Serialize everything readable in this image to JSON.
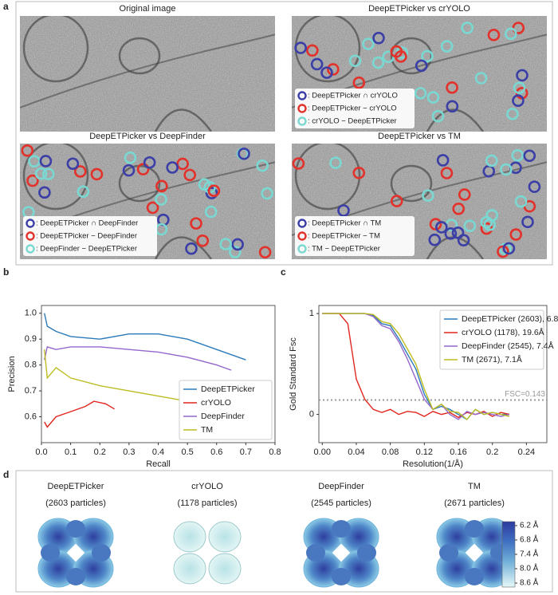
{
  "panel_labels": [
    "a",
    "b",
    "c",
    "d"
  ],
  "panel_a": {
    "marker_colors": [
      "#3b3fa6",
      "#e2322b",
      "#79d8d2"
    ],
    "images": [
      {
        "title": "Original image"
      },
      {
        "title": "DeepETPicker vs crYOLO",
        "legend": [
          ": DeepETPicker ∩ crYOLO",
          ": DeepETPicker − crYOLO",
          ": crYOLO − DeepETPicker"
        ]
      },
      {
        "title": "DeepETPicker vs DeepFinder",
        "legend": [
          ": DeepETPicker ∩ DeepFinder",
          ": DeepETPicker − DeepFinder",
          ": DeepFinder − DeepETPicker"
        ]
      },
      {
        "title": "DeepETPicker vs TM",
        "legend": [
          ": DeepETPicker ∩ TM",
          ": DeepETPicker − TM",
          ": TM − DeepETPicker"
        ]
      }
    ]
  },
  "chart_data": [
    {
      "type": "line",
      "x_label": "Recall",
      "y_label": "Precision",
      "xlim": [
        0,
        0.8
      ],
      "ylim": [
        0.5,
        1.03
      ],
      "xticks": [
        {
          "value": 0,
          "label": "0.0"
        },
        0.1,
        0.2,
        0.3,
        0.4,
        0.5,
        0.6,
        0.7,
        0.8
      ],
      "yticks": [
        0.6,
        0.7,
        0.8,
        0.9,
        {
          "value": 1,
          "label": "1.0"
        }
      ],
      "legend": "lower right",
      "grid": false,
      "series": [
        {
          "name": "DeepETPicker",
          "color": "#2b7bba",
          "x": [
            0.01,
            0.02,
            0.05,
            0.1,
            0.2,
            0.3,
            0.4,
            0.5,
            0.6,
            0.7
          ],
          "values": [
            1.0,
            0.95,
            0.93,
            0.91,
            0.9,
            0.92,
            0.92,
            0.9,
            0.86,
            0.82
          ]
        },
        {
          "name": "crYOLO",
          "color": "#e0261f",
          "x": [
            0.01,
            0.02,
            0.05,
            0.1,
            0.15,
            0.18,
            0.22,
            0.25
          ],
          "values": [
            0.58,
            0.56,
            0.6,
            0.62,
            0.64,
            0.66,
            0.65,
            0.63
          ]
        },
        {
          "name": "DeepFinder",
          "color": "#9467cc",
          "x": [
            0.01,
            0.02,
            0.05,
            0.1,
            0.2,
            0.3,
            0.4,
            0.5,
            0.6,
            0.65
          ],
          "values": [
            0.82,
            0.87,
            0.86,
            0.87,
            0.87,
            0.86,
            0.85,
            0.83,
            0.8,
            0.78
          ]
        },
        {
          "name": "TM",
          "color": "#bcbd22",
          "x": [
            0.01,
            0.02,
            0.05,
            0.1,
            0.2,
            0.3,
            0.4,
            0.5,
            0.55
          ],
          "values": [
            0.86,
            0.75,
            0.79,
            0.75,
            0.72,
            0.7,
            0.68,
            0.66,
            0.65
          ]
        }
      ]
    },
    {
      "type": "line",
      "x_label": "Resolution(1/Å)",
      "y_label": "Gold Standard Fsc",
      "xlim": [
        -0.004,
        0.264
      ],
      "ylim": [
        -0.28,
        1.08
      ],
      "xticks": [
        {
          "value": 0,
          "label": "0.00"
        },
        0.04,
        0.08,
        0.12,
        0.16,
        0.2,
        0.24
      ],
      "yticks": [
        0,
        1
      ],
      "reference_line": 0.143,
      "annotation": "FSC=0.143",
      "legend": "upper right",
      "grid": false,
      "x": [
        0,
        0.01,
        0.02,
        0.03,
        0.04,
        0.05,
        0.06,
        0.07,
        0.08,
        0.09,
        0.1,
        0.11,
        0.12,
        0.13,
        0.14,
        0.15,
        0.16,
        0.17,
        0.18,
        0.19,
        0.2,
        0.21,
        0.22
      ],
      "series": [
        {
          "name": "DeepETPicker (2603), 6.8Å",
          "color": "#2b7bba",
          "values": [
            1,
            1,
            1,
            1,
            1,
            1,
            0.98,
            0.9,
            0.88,
            0.75,
            0.6,
            0.45,
            0.2,
            0.05,
            0.08,
            0.05,
            0,
            -0.05,
            0.05,
            0,
            0.02,
            0,
            0
          ]
        },
        {
          "name": "crYOLO (1178), 19.6Å",
          "color": "#e0261f",
          "values": [
            1,
            1,
            1,
            0.9,
            0.35,
            0.15,
            0.05,
            0.02,
            0.05,
            0,
            0.03,
            0.02,
            -0.02,
            0.03,
            0,
            0.02,
            -0.03,
            0.02,
            0,
            0.03,
            -0.02,
            0.02,
            0
          ]
        },
        {
          "name": "DeepFinder (2545), 7.4Å",
          "color": "#9467cc",
          "values": [
            1,
            1,
            1,
            1,
            1,
            1,
            0.97,
            0.88,
            0.85,
            0.72,
            0.55,
            0.35,
            0.15,
            0.05,
            0.1,
            0,
            -0.05,
            0.03,
            0,
            0.02,
            0,
            -0.02,
            0
          ]
        },
        {
          "name": "TM (2671), 7.1Å",
          "color": "#bcbd22",
          "values": [
            1,
            1,
            1,
            1,
            1,
            1,
            0.99,
            0.92,
            0.9,
            0.8,
            0.65,
            0.5,
            0.25,
            0.05,
            0.1,
            0.03,
            0.02,
            -0.05,
            0.05,
            0,
            0.02,
            0,
            -0.02
          ]
        }
      ]
    }
  ],
  "panel_d": {
    "maps": [
      {
        "name": "DeepETPicker",
        "particles": "(2603 particles)"
      },
      {
        "name": "crYOLO",
        "particles": "(1178 particles)"
      },
      {
        "name": "DeepFinder",
        "particles": "(2545 particles)"
      },
      {
        "name": "TM",
        "particles": "(2671 particles)"
      }
    ],
    "colorbar": {
      "lim": [
        6.2,
        8.6
      ],
      "ticks": [
        {
          "value": 6.2,
          "label": "6.2 Å"
        },
        {
          "value": 6.8,
          "label": "6.8 Å"
        },
        {
          "value": 7.4,
          "label": "7.4 Å"
        },
        {
          "value": 8.0,
          "label": "8.0 Å"
        },
        {
          "value": 8.6,
          "label": "8.6 Å"
        }
      ]
    }
  }
}
